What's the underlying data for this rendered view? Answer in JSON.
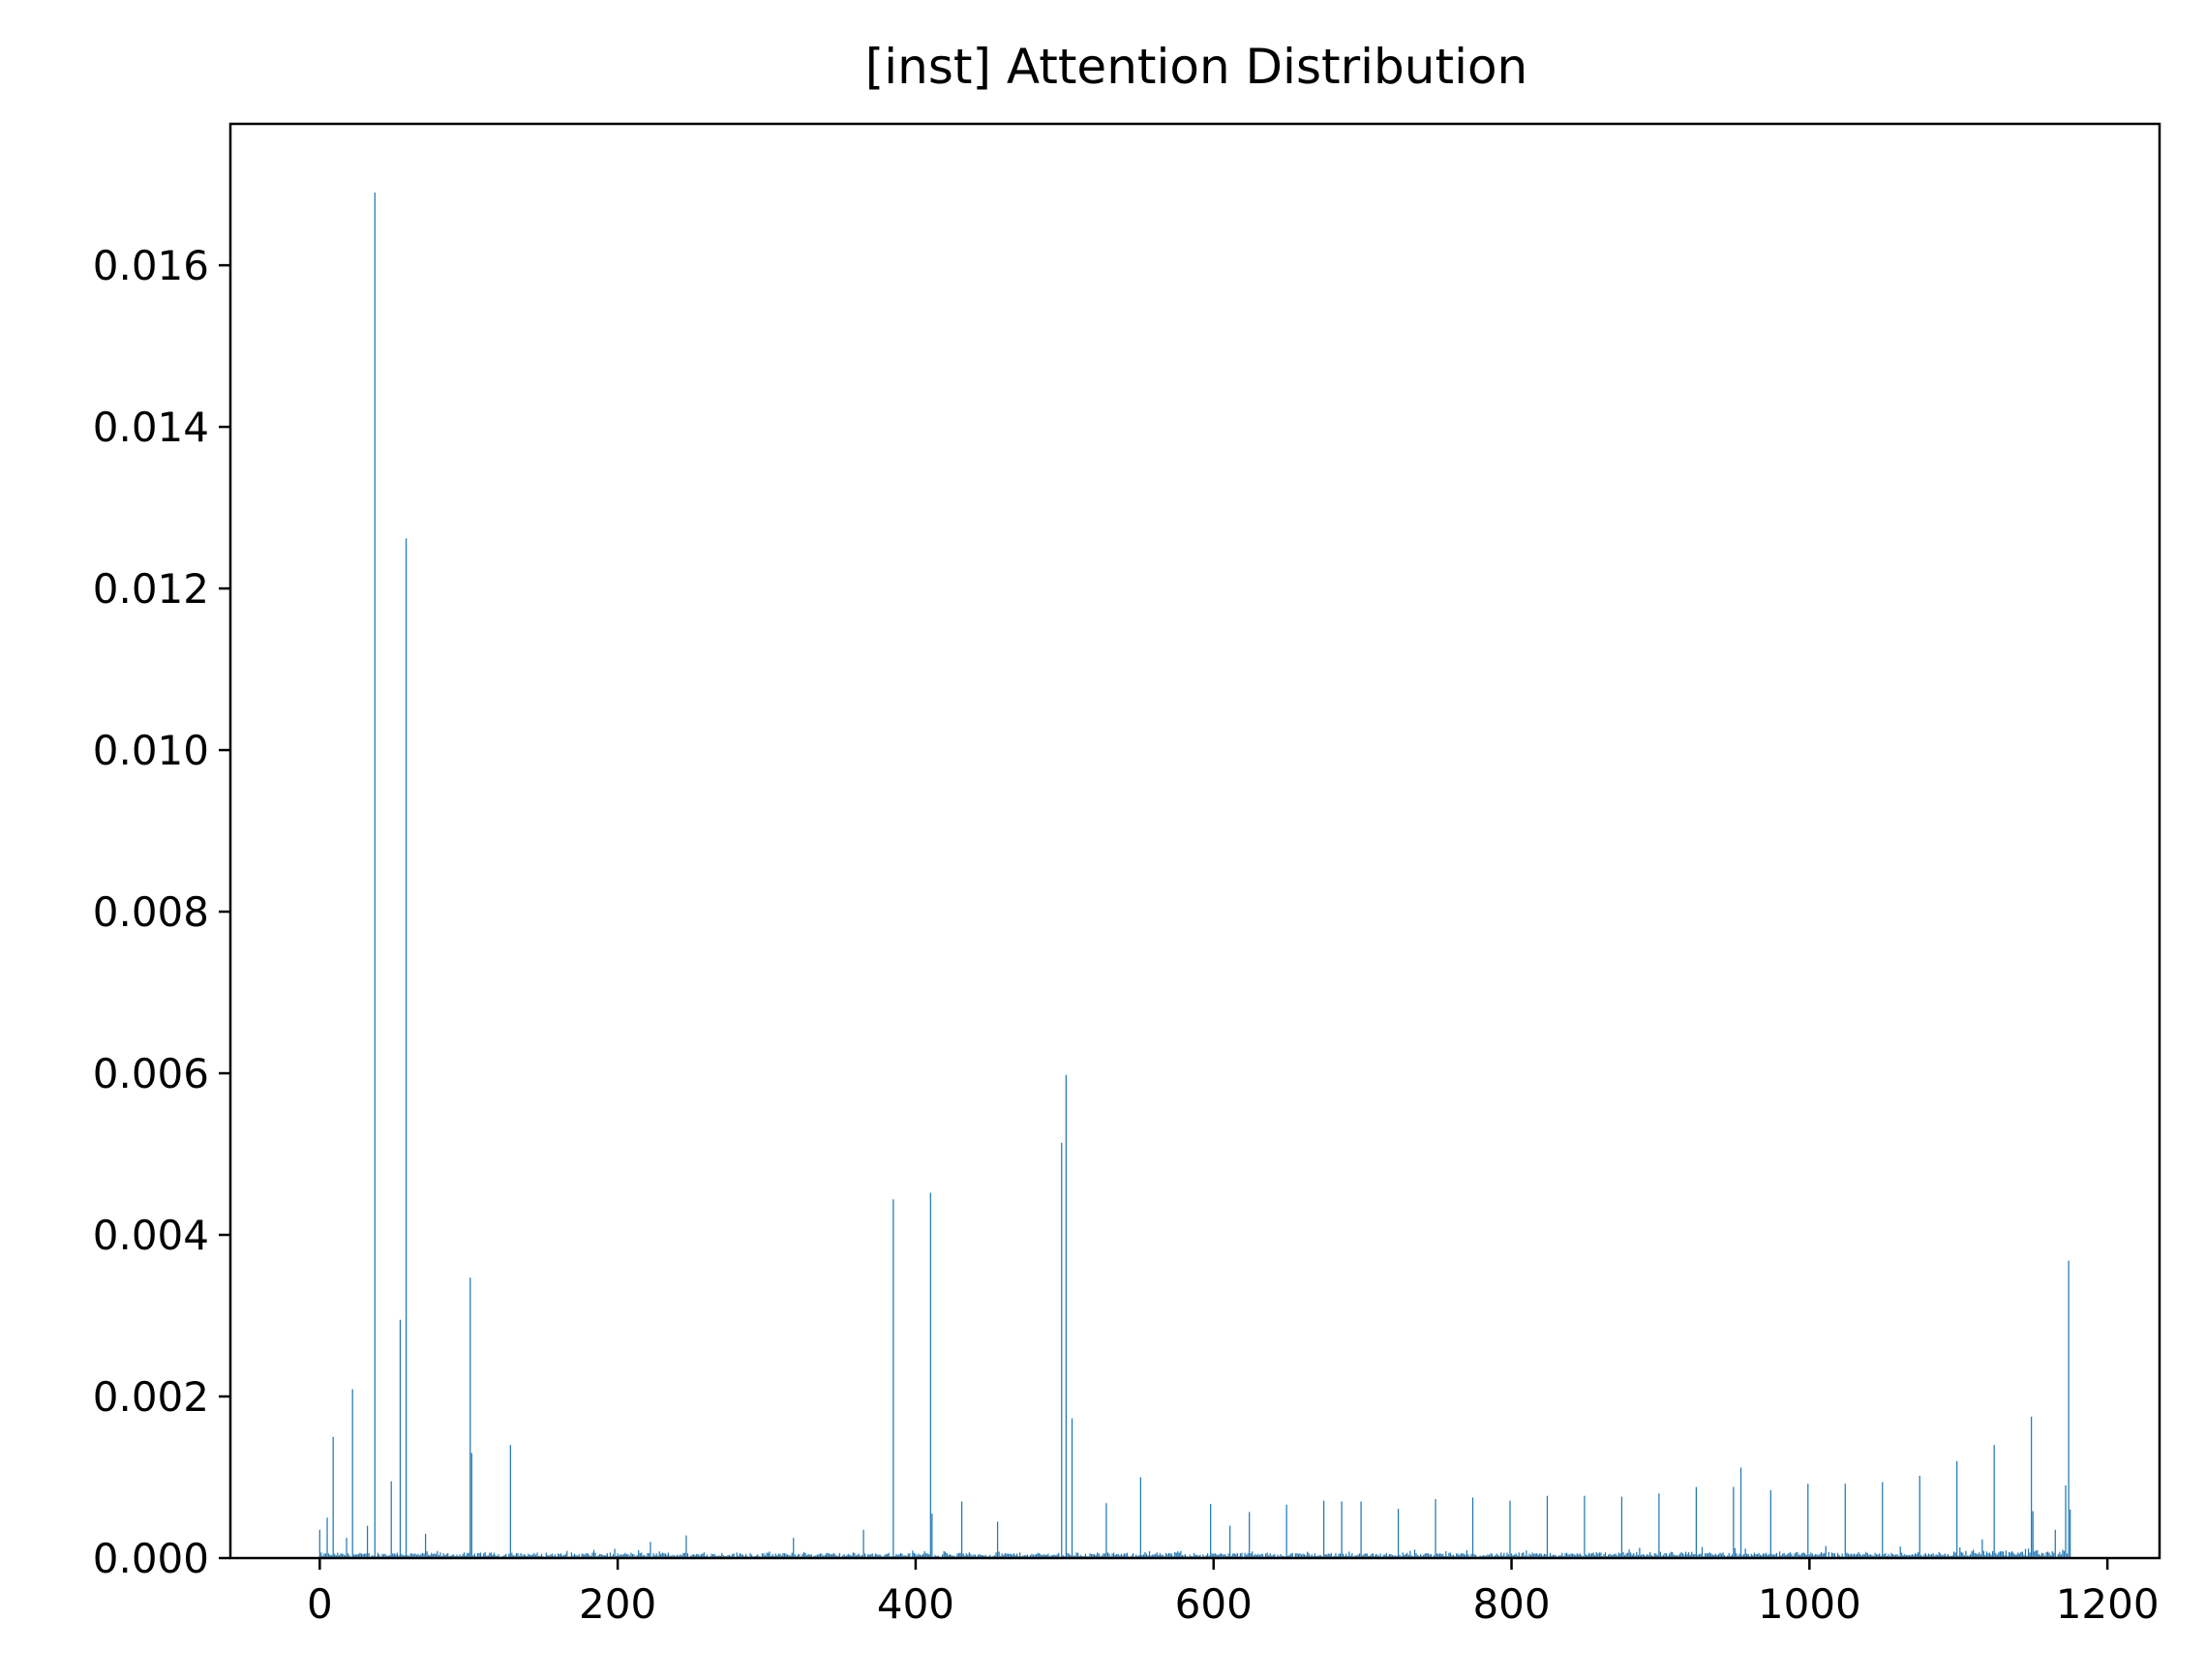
{
  "chart_data": {
    "type": "bar",
    "title": "[inst] Attention Distribution",
    "xlabel": "",
    "ylabel": "",
    "xlim": [
      -60,
      1235
    ],
    "ylim": [
      0,
      0.01775
    ],
    "x_ticks": [
      0,
      200,
      400,
      600,
      800,
      1000,
      1200
    ],
    "x_tick_labels": [
      "0",
      "200",
      "400",
      "600",
      "800",
      "1000",
      "1200"
    ],
    "y_ticks": [
      0,
      0.002,
      0.004,
      0.006,
      0.008,
      0.01,
      0.012,
      0.014,
      0.016
    ],
    "y_tick_labels": [
      "0.000",
      "0.002",
      "0.004",
      "0.006",
      "0.008",
      "0.010",
      "0.012",
      "0.014",
      "0.016"
    ],
    "grid": false,
    "legend": "none",
    "bar_color": "#1f77b4",
    "n_bars": 1176,
    "baseline_value": 4e-05,
    "peaks": [
      {
        "x": 0,
        "y": 0.00035
      },
      {
        "x": 5,
        "y": 0.0005
      },
      {
        "x": 9,
        "y": 0.0015
      },
      {
        "x": 18,
        "y": 0.00025
      },
      {
        "x": 22,
        "y": 0.00209
      },
      {
        "x": 32,
        "y": 0.0004
      },
      {
        "x": 37,
        "y": 0.0169
      },
      {
        "x": 48,
        "y": 0.00095
      },
      {
        "x": 54,
        "y": 0.00295
      },
      {
        "x": 58,
        "y": 0.01262
      },
      {
        "x": 71,
        "y": 0.0003
      },
      {
        "x": 101,
        "y": 0.00347
      },
      {
        "x": 102,
        "y": 0.0013
      },
      {
        "x": 128,
        "y": 0.0014
      },
      {
        "x": 222,
        "y": 0.0002
      },
      {
        "x": 246,
        "y": 0.00028
      },
      {
        "x": 318,
        "y": 0.00025
      },
      {
        "x": 365,
        "y": 0.00035
      },
      {
        "x": 385,
        "y": 0.00444
      },
      {
        "x": 410,
        "y": 0.00452
      },
      {
        "x": 411,
        "y": 0.00055
      },
      {
        "x": 431,
        "y": 0.0007
      },
      {
        "x": 455,
        "y": 0.00045
      },
      {
        "x": 498,
        "y": 0.00514
      },
      {
        "x": 501,
        "y": 0.00598
      },
      {
        "x": 505,
        "y": 0.00173
      },
      {
        "x": 528,
        "y": 0.00068
      },
      {
        "x": 551,
        "y": 0.001
      },
      {
        "x": 598,
        "y": 0.00067
      },
      {
        "x": 611,
        "y": 0.0004
      },
      {
        "x": 624,
        "y": 0.00057
      },
      {
        "x": 649,
        "y": 0.00066
      },
      {
        "x": 674,
        "y": 0.00071
      },
      {
        "x": 686,
        "y": 0.0007
      },
      {
        "x": 699,
        "y": 0.0007
      },
      {
        "x": 724,
        "y": 0.00061
      },
      {
        "x": 749,
        "y": 0.00073
      },
      {
        "x": 774,
        "y": 0.00075
      },
      {
        "x": 799,
        "y": 0.00071
      },
      {
        "x": 824,
        "y": 0.00077
      },
      {
        "x": 849,
        "y": 0.00077
      },
      {
        "x": 874,
        "y": 0.00076
      },
      {
        "x": 899,
        "y": 0.0008
      },
      {
        "x": 924,
        "y": 0.00088
      },
      {
        "x": 949,
        "y": 0.00088
      },
      {
        "x": 954,
        "y": 0.00112
      },
      {
        "x": 974,
        "y": 0.00084
      },
      {
        "x": 999,
        "y": 0.00092
      },
      {
        "x": 1024,
        "y": 0.00092
      },
      {
        "x": 1049,
        "y": 0.00094
      },
      {
        "x": 1074,
        "y": 0.00102
      },
      {
        "x": 1099,
        "y": 0.0012
      },
      {
        "x": 1124,
        "y": 0.0014
      },
      {
        "x": 1149,
        "y": 0.00175
      },
      {
        "x": 1150,
        "y": 0.00058
      },
      {
        "x": 1165,
        "y": 0.00035
      },
      {
        "x": 1172,
        "y": 0.0009
      },
      {
        "x": 1174,
        "y": 0.00368
      },
      {
        "x": 1175,
        "y": 0.0006
      }
    ]
  }
}
